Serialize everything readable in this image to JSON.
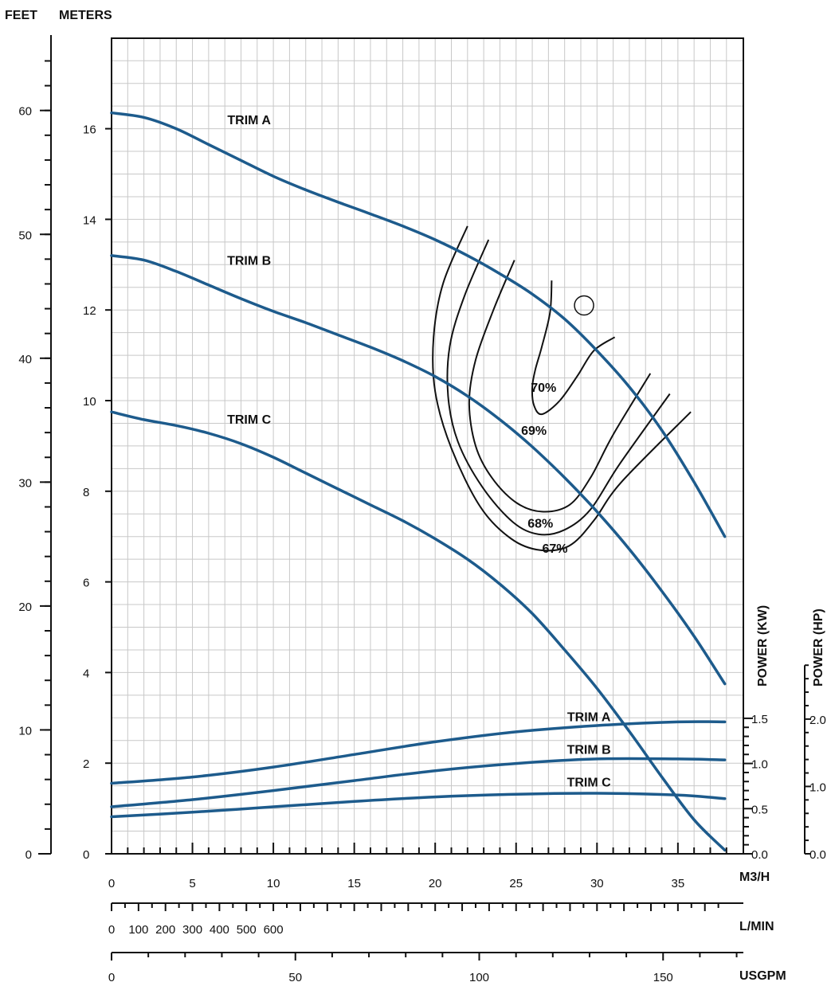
{
  "chart_data": {
    "type": "line",
    "units": {
      "feet": "FEET",
      "meters": "METERS",
      "m3h": "M3/H",
      "lmin": "L/MIN",
      "usgpm": "USGPM",
      "power_kw": "POWER (KW)",
      "power_hp": "POWER (HP)"
    },
    "xlim_m3h": [
      0,
      38
    ],
    "ylim_m": [
      0,
      18.3
    ],
    "power_ylim_kw": [
      0,
      3.0
    ],
    "feet_ticks": [
      "0",
      "10",
      "20",
      "30",
      "40",
      "50",
      "60"
    ],
    "meter_ticks": [
      "0",
      "2",
      "4",
      "6",
      "8",
      "10",
      "12",
      "14",
      "16"
    ],
    "m3h_ticks": [
      "0",
      "5",
      "10",
      "15",
      "20",
      "25",
      "30",
      "35"
    ],
    "lmin_ticks": [
      "0",
      "100",
      "200",
      "300",
      "400",
      "500",
      "600"
    ],
    "usgpm_ticks": [
      "0",
      "50",
      "100",
      "150"
    ],
    "kw_ticks": [
      "0.0",
      "0.5",
      "1.0",
      "1.5"
    ],
    "hp_ticks": [
      "0.0",
      "1.0",
      "2.0"
    ],
    "head_curves": [
      {
        "name": "TRIM A",
        "label_at": [
          8.5,
          16.2
        ],
        "x": [
          0,
          2,
          4,
          6,
          8,
          10,
          12,
          14,
          16,
          18,
          20,
          22,
          24,
          26,
          28,
          30,
          32,
          34,
          36,
          37.9
        ],
        "y": [
          16.35,
          16.25,
          16.0,
          15.65,
          15.3,
          14.95,
          14.65,
          14.38,
          14.12,
          13.85,
          13.55,
          13.2,
          12.8,
          12.35,
          11.8,
          11.1,
          10.3,
          9.35,
          8.2,
          7.0
        ]
      },
      {
        "name": "TRIM B",
        "label_at": [
          8.5,
          13.1
        ],
        "x": [
          0,
          2,
          4,
          6,
          8,
          10,
          12,
          14,
          16,
          18,
          20,
          22,
          24,
          26,
          28,
          30,
          32,
          34,
          36,
          37.9
        ],
        "y": [
          13.2,
          13.1,
          12.85,
          12.55,
          12.25,
          11.97,
          11.72,
          11.45,
          11.18,
          10.88,
          10.53,
          10.1,
          9.58,
          8.98,
          8.3,
          7.55,
          6.72,
          5.8,
          4.8,
          3.75
        ]
      },
      {
        "name": "TRIM C",
        "label_at": [
          8.5,
          9.6
        ],
        "x": [
          0,
          2,
          4,
          6,
          8,
          10,
          12,
          14,
          16,
          18,
          20,
          22,
          24,
          26,
          28,
          30,
          32,
          34,
          36,
          37.9
        ],
        "y": [
          9.75,
          9.58,
          9.45,
          9.28,
          9.05,
          8.75,
          8.4,
          8.05,
          7.7,
          7.35,
          6.95,
          6.5,
          5.95,
          5.3,
          4.5,
          3.65,
          2.7,
          1.7,
          0.75,
          0.08
        ]
      }
    ],
    "power_curves": [
      {
        "name": "TRIM A",
        "label_at": [
          29.5,
          1.52
        ],
        "x": [
          0,
          5,
          10,
          15,
          20,
          25,
          30,
          35,
          37.9
        ],
        "y": [
          0.78,
          0.85,
          0.96,
          1.1,
          1.24,
          1.35,
          1.42,
          1.46,
          1.46
        ]
      },
      {
        "name": "TRIM B",
        "label_at": [
          29.5,
          1.16
        ],
        "x": [
          0,
          5,
          10,
          15,
          20,
          25,
          30,
          35,
          37.9
        ],
        "y": [
          0.52,
          0.6,
          0.7,
          0.81,
          0.92,
          1.0,
          1.05,
          1.05,
          1.04
        ]
      },
      {
        "name": "TRIM C",
        "label_at": [
          29.5,
          0.8
        ],
        "x": [
          0,
          5,
          10,
          15,
          20,
          25,
          30,
          35,
          37.9
        ],
        "y": [
          0.41,
          0.46,
          0.52,
          0.58,
          0.63,
          0.66,
          0.67,
          0.65,
          0.61
        ]
      }
    ],
    "efficiency_contours": [
      {
        "label": "70%",
        "label_at": [
          26.7,
          10.3
        ],
        "x": [
          27.2,
          27.1,
          26.6,
          26.2,
          26.0,
          26.1,
          26.6,
          27.7,
          28.8,
          29.8,
          31.1
        ],
        "y": [
          12.65,
          11.95,
          11.2,
          10.7,
          10.3,
          9.9,
          9.7,
          10.0,
          10.55,
          11.1,
          11.4
        ]
      },
      {
        "label": "69%",
        "label_at": [
          26.1,
          9.35
        ],
        "x": [
          24.9,
          23.6,
          22.5,
          22.1,
          22.5,
          23.5,
          25.0,
          26.6,
          28.3,
          29.6,
          31.0,
          33.3
        ],
        "y": [
          13.1,
          12.0,
          10.9,
          9.95,
          9.0,
          8.3,
          7.75,
          7.55,
          7.7,
          8.3,
          9.25,
          10.6
        ]
      },
      {
        "label": "68%",
        "label_at": [
          26.5,
          7.3
        ],
        "x": [
          23.3,
          21.8,
          20.9,
          20.8,
          21.4,
          22.9,
          24.8,
          26.4,
          28.0,
          29.6,
          31.4,
          34.5
        ],
        "y": [
          13.55,
          12.3,
          11.2,
          10.1,
          9.1,
          8.1,
          7.32,
          7.05,
          7.15,
          7.6,
          8.6,
          10.15
        ]
      },
      {
        "label": "67%",
        "label_at": [
          27.4,
          6.75
        ],
        "x": [
          22.0,
          20.5,
          19.9,
          20.0,
          21.0,
          22.8,
          24.7,
          26.5,
          28.3,
          29.8,
          31.5,
          35.8
        ],
        "y": [
          13.85,
          12.6,
          11.4,
          10.2,
          8.95,
          7.65,
          6.95,
          6.7,
          6.8,
          7.35,
          8.2,
          9.75
        ]
      }
    ],
    "bep_marker": {
      "x": 29.2,
      "y": 12.1
    }
  }
}
